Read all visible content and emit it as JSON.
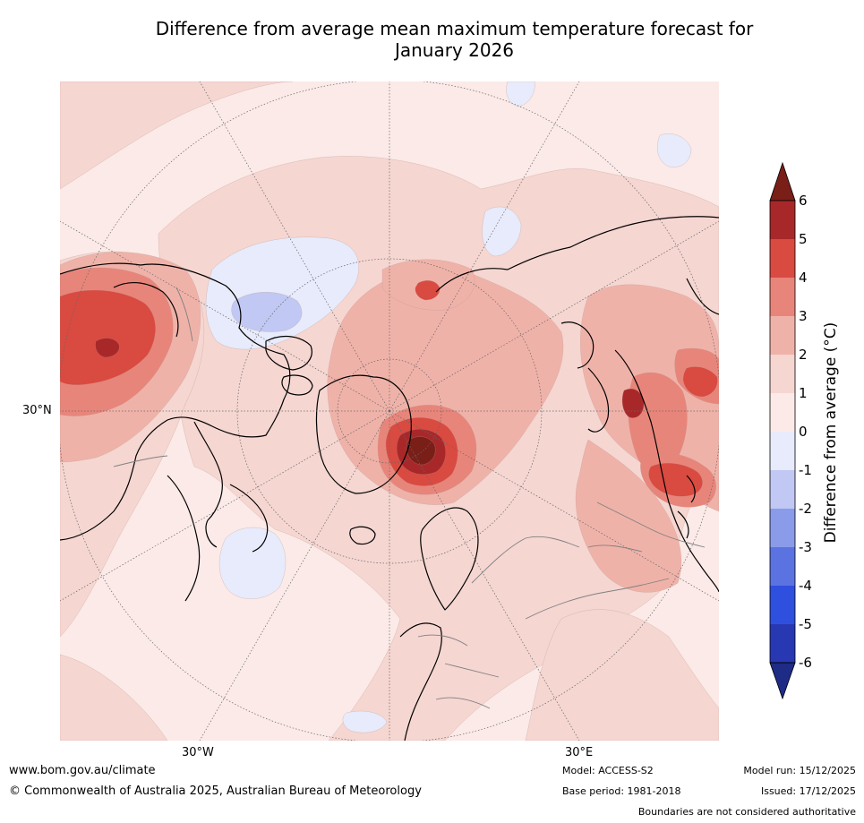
{
  "title": {
    "line1": "Difference from average mean maximum temperature forecast for",
    "line2": "January 2026"
  },
  "map": {
    "axis_labels": {
      "left": "30°N",
      "bottom_left": "30°W",
      "bottom_right": "30°E"
    }
  },
  "colorbar": {
    "title": "Difference from average (°C)",
    "ticks": [
      "6",
      "5",
      "4",
      "3",
      "2",
      "1",
      "0",
      "-1",
      "-2",
      "-3",
      "-4",
      "-5",
      "-6"
    ],
    "colors_warm": [
      "#7a1e18",
      "#a8282a",
      "#d94a41",
      "#e8857a",
      "#efb2a9",
      "#f5d6d1",
      "#fbeae7"
    ],
    "colors_cool": [
      "#e7ebfb",
      "#c0c8f3",
      "#8a9be9",
      "#5b73e1",
      "#2f4fdf",
      "#2838b3",
      "#1e2c86"
    ]
  },
  "footer": {
    "url": "www.bom.gov.au/climate",
    "copyright": "© Commonwealth of Australia 2025, Australian Bureau of Meteorology",
    "model": "Model: ACCESS-S2",
    "base_period": "Base period: 1981-2018",
    "model_run": "Model run: 15/12/2025",
    "issued": "Issued: 17/12/2025",
    "disclaimer": "Boundaries are not considered authoritative"
  }
}
